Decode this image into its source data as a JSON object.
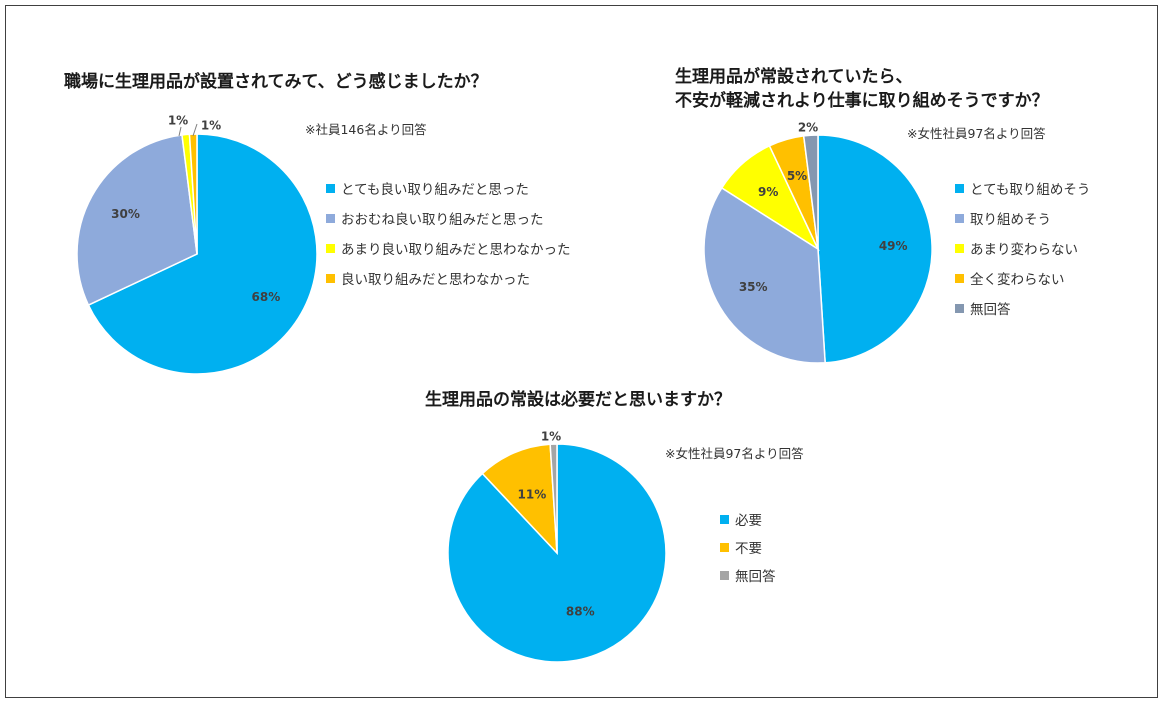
{
  "chart_data": [
    {
      "type": "pie",
      "title": "職場に生理用品が設置されてみて、どう感じましたか？",
      "note": "※社員146名より回答",
      "slices": [
        {
          "label": "とても良い取り組みだと思った",
          "value": 68,
          "display": "68%",
          "color": "#00b0f0"
        },
        {
          "label": "おおむね良い取り組みだと思った",
          "value": 30,
          "display": "30%",
          "color": "#8eaadb"
        },
        {
          "label": "あまり良い取り組みだと思わなかった",
          "value": 1,
          "display": "1%",
          "color": "#ffff00"
        },
        {
          "label": "良い取り組みだと思わなかった",
          "value": 1,
          "display": "1%",
          "color": "#ffc000"
        }
      ]
    },
    {
      "type": "pie",
      "title": [
        "生理用品が常設されていたら、",
        "不安が軽減されより仕事に取り組めそうですか？"
      ],
      "note": "※女性社員97名より回答",
      "slices": [
        {
          "label": "とても取り組めそう",
          "value": 49,
          "display": "49%",
          "color": "#00b0f0"
        },
        {
          "label": "取り組めそう",
          "value": 35,
          "display": "35%",
          "color": "#8eaadb"
        },
        {
          "label": "あまり変わらない",
          "value": 9,
          "display": "9%",
          "color": "#ffff00"
        },
        {
          "label": "全く変わらない",
          "value": 5,
          "display": "5%",
          "color": "#ffc000"
        },
        {
          "label": "無回答",
          "value": 2,
          "display": "2%",
          "color": "#8497b0"
        }
      ]
    },
    {
      "type": "pie",
      "title": "生理用品の常設は必要だと思いますか？",
      "note": "※女性社員97名より回答",
      "slices": [
        {
          "label": "必要",
          "value": 88,
          "display": "88%",
          "color": "#00b0f0"
        },
        {
          "label": "不要",
          "value": 11,
          "display": "11%",
          "color": "#ffc000"
        },
        {
          "label": "無回答",
          "value": 1,
          "display": "1%",
          "color": "#a5a5a5"
        }
      ]
    }
  ]
}
